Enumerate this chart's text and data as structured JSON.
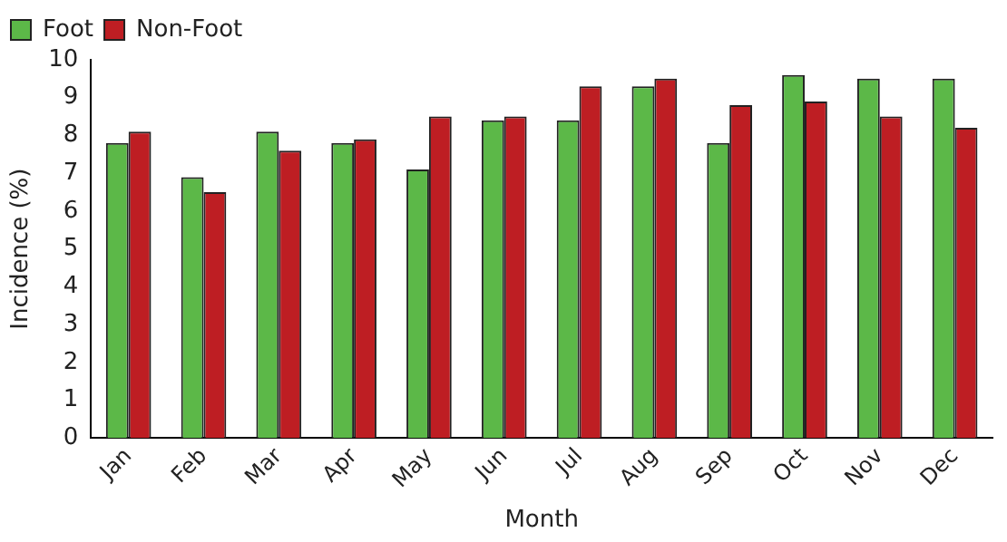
{
  "chart_data": {
    "type": "bar",
    "xlabel": "Month",
    "ylabel": "Incidence (%)",
    "categories": [
      "Jan",
      "Feb",
      "Mar",
      "Apr",
      "May",
      "Jun",
      "Jul",
      "Aug",
      "Sep",
      "Oct",
      "Nov",
      "Dec"
    ],
    "series": [
      {
        "name": "Foot",
        "color": "#5cb848",
        "values": [
          7.8,
          6.9,
          8.1,
          7.8,
          7.1,
          8.4,
          8.4,
          9.3,
          7.8,
          9.6,
          9.5,
          9.5
        ]
      },
      {
        "name": "Non-Foot",
        "color": "#be1e23",
        "values": [
          8.1,
          6.5,
          7.6,
          7.9,
          8.5,
          8.5,
          9.3,
          9.5,
          8.8,
          8.9,
          8.5,
          8.2
        ]
      }
    ],
    "ylim": [
      0,
      10
    ],
    "yticks": [
      0,
      1,
      2,
      3,
      4,
      5,
      6,
      7,
      8,
      9,
      10
    ],
    "grid": false,
    "legend": "top left"
  }
}
